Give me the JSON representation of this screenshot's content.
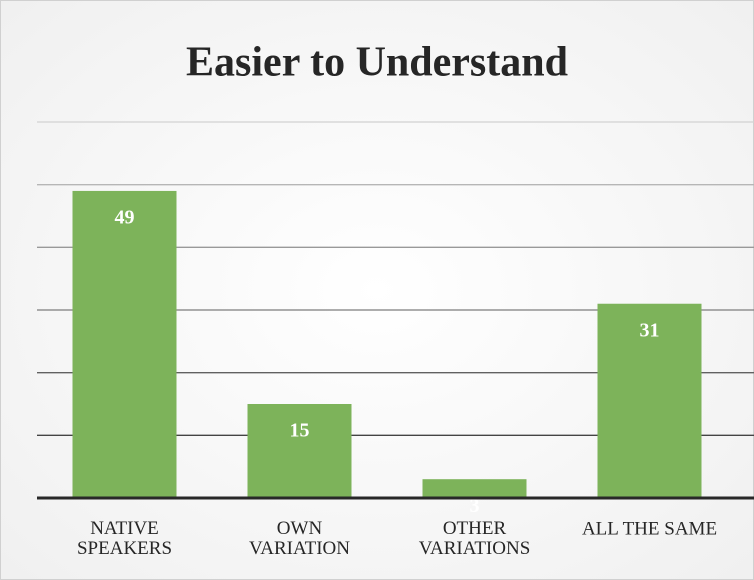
{
  "chart_data": {
    "type": "bar",
    "title": "Easier to Understand",
    "categories": [
      "NATIVE\nSPEAKERS",
      "OWN\nVARIATION",
      "OTHER\nVARIATIONS",
      "ALL THE SAME"
    ],
    "values": [
      49,
      15,
      3,
      31
    ],
    "color": "#7db35a",
    "ylim": [
      0,
      60
    ],
    "yticks": [
      0,
      10,
      20,
      30,
      40,
      50,
      60
    ],
    "grid": true
  }
}
